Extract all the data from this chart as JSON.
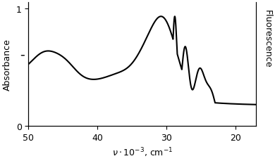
{
  "title": "",
  "xlabel": "ν·10⁻³,  cm⁻¹",
  "ylabel_left": "Absorbance",
  "ylabel_right": "Fluorescence",
  "xlim": [
    50,
    17
  ],
  "ylim": [
    0,
    1.05
  ],
  "xticks": [
    50,
    40,
    30,
    20
  ],
  "yticks_left": [
    0,
    1
  ],
  "background_color": "#ffffff",
  "line_color": "#000000",
  "line_width": 1.5
}
